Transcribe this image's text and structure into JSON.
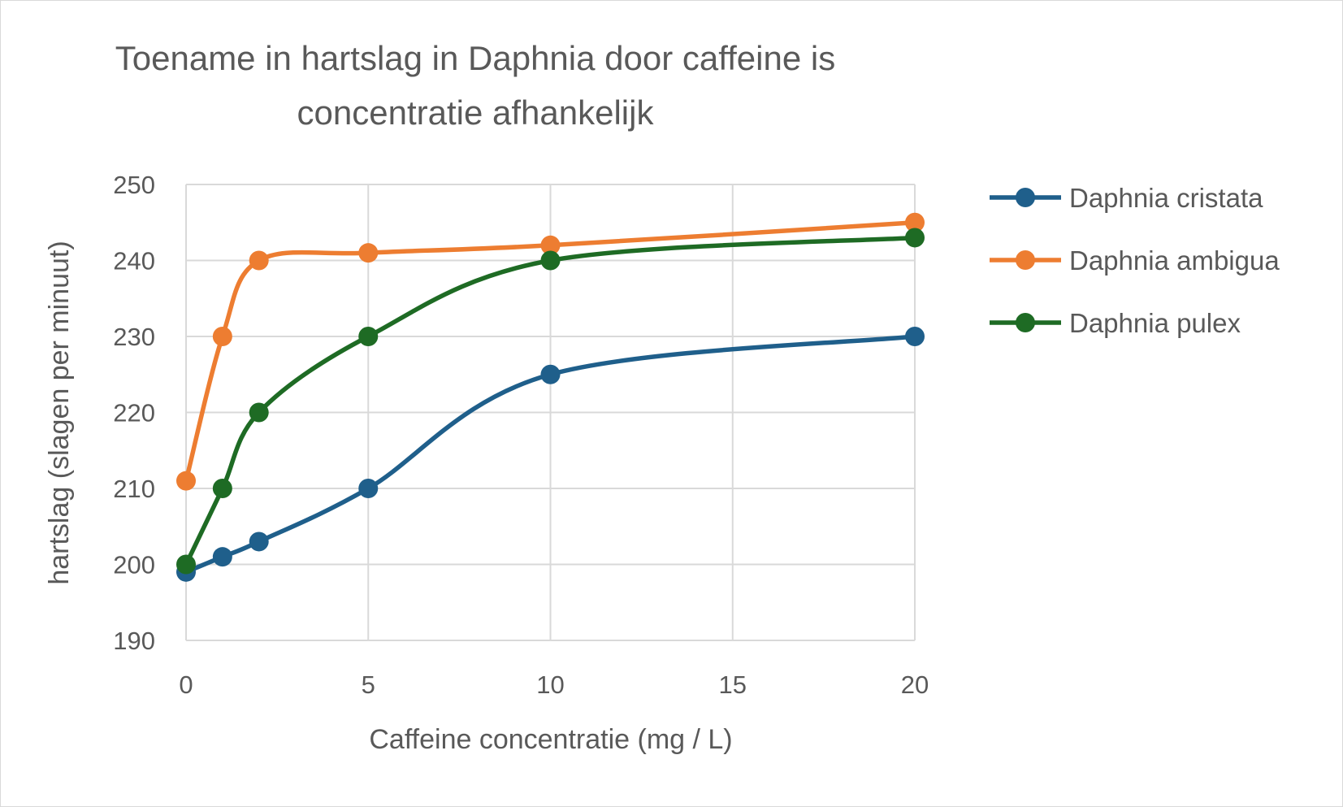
{
  "chart_data": {
    "type": "line",
    "title_lines": [
      "Toename in hartslag in Daphnia door caffeine is",
      "concentratie afhankelijk"
    ],
    "xlabel": "Caffeine concentratie (mg / L)",
    "ylabel": "hartslag (slagen per minuut)",
    "xlim": [
      0,
      20
    ],
    "ylim": [
      190,
      250
    ],
    "xticks": [
      0,
      5,
      10,
      15,
      20
    ],
    "yticks": [
      190,
      200,
      210,
      220,
      230,
      240,
      250
    ],
    "grid": true,
    "legend_position": "right",
    "x": [
      0,
      1,
      2,
      5,
      10,
      20
    ],
    "series": [
      {
        "name": "Daphnia cristata",
        "color": "#1f5f8b",
        "values": [
          199,
          201,
          203,
          210,
          225,
          230
        ]
      },
      {
        "name": "Daphnia ambigua",
        "color": "#ed7d31",
        "values": [
          211,
          230,
          240,
          241,
          242,
          245
        ]
      },
      {
        "name": "Daphnia pulex",
        "color": "#1e6b24",
        "values": [
          200,
          210,
          220,
          230,
          240,
          243
        ]
      }
    ]
  }
}
